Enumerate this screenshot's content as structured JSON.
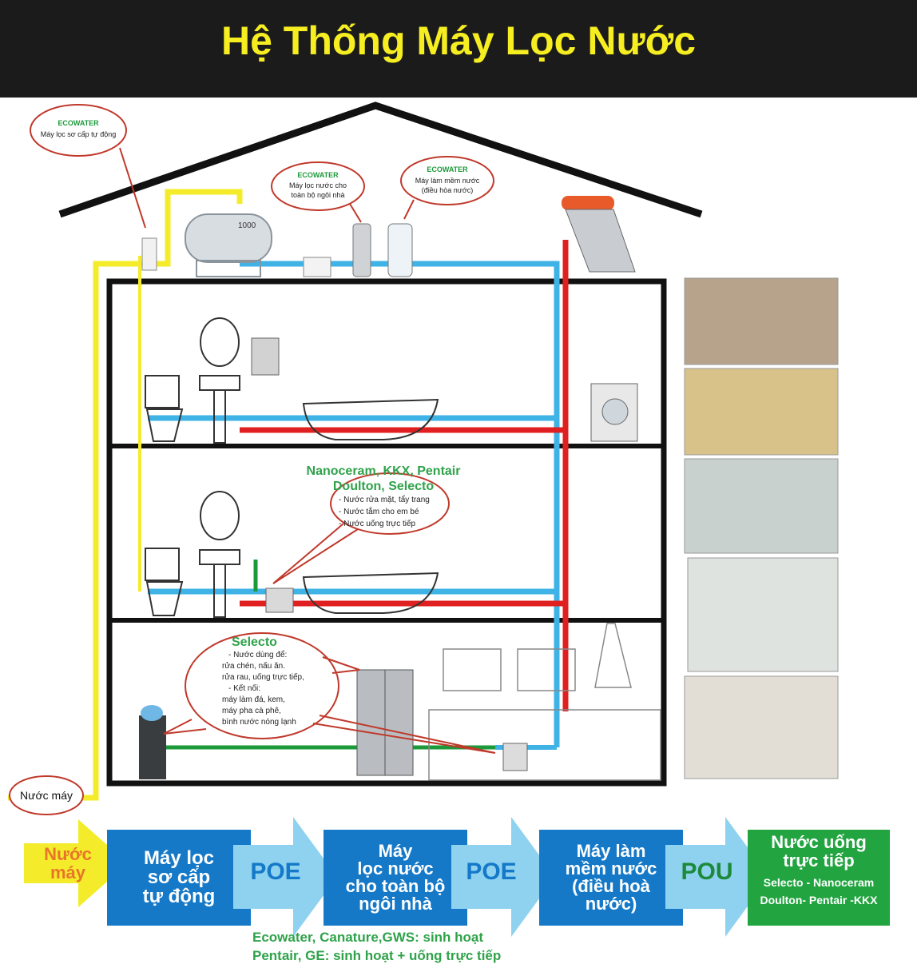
{
  "header": {
    "title": "Hệ Thống Máy Lọc Nước"
  },
  "callouts": {
    "primary": {
      "brand": "ECOWATER",
      "text": "Máy lọc sơ cấp tự động"
    },
    "whole_house": {
      "brand": "ECOWATER",
      "lines": [
        "Máy lọc nước cho",
        "toàn bộ ngôi nhà"
      ]
    },
    "softener": {
      "brand": "ECOWATER",
      "lines": [
        "Máy làm mềm nước",
        "(điều hòa nước)"
      ]
    },
    "bathroom": {
      "brands": [
        "Nanoceram, KKX, Pentair",
        "Doulton, Selecto"
      ],
      "lines": [
        "- Nước rửa mặt, tẩy trang",
        "- Nước tắm cho em bé",
        "- Nước uống trực tiếp"
      ]
    },
    "kitchen": {
      "brand": "Selecto",
      "lines": [
        "- Nước dùng để:",
        "rửa chén, nấu ăn.",
        "rửa rau, uống trực tiếp,",
        "- Kết nối:",
        "máy làm đá, kem,",
        "máy pha cà phê,",
        "bình nước nóng lạnh"
      ]
    },
    "mains": {
      "text": "Nước máy"
    },
    "tank_label": "1000"
  },
  "flow": {
    "start": [
      "Nước",
      "máy"
    ],
    "step1": [
      "Máy lọc",
      "sơ cấp",
      "tự động"
    ],
    "arrow1": "POE",
    "step2": [
      "Máy",
      "lọc nước",
      "cho toàn bộ",
      "ngôi nhà"
    ],
    "arrow2": "POE",
    "step3": [
      "Máy làm",
      "mềm nước",
      "(điều hoà",
      "nước)"
    ],
    "arrow3": "POU",
    "end_title": [
      "Nước uống",
      "trực tiếp"
    ],
    "end_brands": [
      "Selecto - Nanoceram",
      "Doulton- Pentair -KKX"
    ]
  },
  "footer": {
    "line1": "Ecowater, Canature,GWS: sinh hoạt",
    "line2": "Pentair, GE: sinh hoạt + uống trực tiếp"
  },
  "colors": {
    "header_bg": "#1b1b1b",
    "title": "#f6ee20",
    "cold_pipe": "#3fb3e6",
    "hot_pipe": "#e02020",
    "mains_pipe": "#f4ec2a",
    "drinking_pipe": "#1c9a3a",
    "flow_blue": "#1579c8",
    "flow_green": "#22a540",
    "callout_border": "#c0392b"
  }
}
